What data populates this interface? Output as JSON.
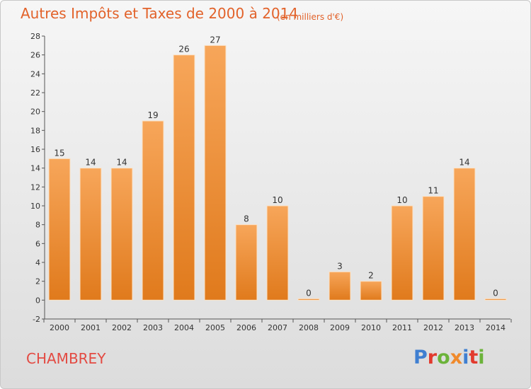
{
  "chart_data": {
    "type": "bar",
    "title": "Autres Impôts et Taxes de 2000 à 2014",
    "subtitle": "(en milliers d'€)",
    "categories": [
      "2000",
      "2001",
      "2002",
      "2003",
      "2004",
      "2005",
      "2006",
      "2007",
      "2008",
      "2009",
      "2010",
      "2011",
      "2012",
      "2013",
      "2014"
    ],
    "values": [
      15,
      14,
      14,
      19,
      26,
      27,
      8,
      10,
      0,
      3,
      2,
      10,
      11,
      14,
      0
    ],
    "ylim": [
      -2,
      28
    ],
    "yticks": [
      -2,
      0,
      2,
      4,
      6,
      8,
      10,
      12,
      14,
      16,
      18,
      20,
      22,
      24,
      26,
      28
    ],
    "grid": false,
    "bar_color": "#f08a2c",
    "bar_color_light": "#f7a65a",
    "bar_color_dark": "#e07a1c"
  },
  "footer": {
    "commune": "CHAMBREY",
    "logo_letters": [
      "P",
      "r",
      "o",
      "x",
      "i",
      "t",
      "i"
    ],
    "logo_colors": [
      "#3f7fd1",
      "#e23a2e",
      "#6bb33a",
      "#f08a2c",
      "#3f7fd1",
      "#e23a2e",
      "#6bb33a"
    ]
  },
  "colors": {
    "title": "#e2622a",
    "commune": "#e34a42"
  }
}
